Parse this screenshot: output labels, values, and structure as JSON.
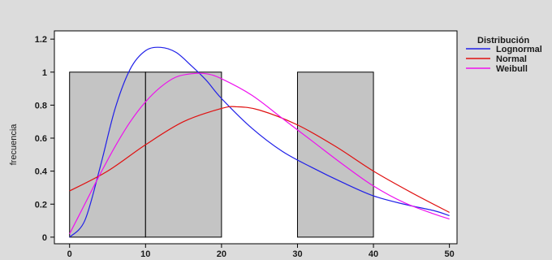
{
  "chart_data": {
    "type": "histogram-with-fitted-curves",
    "ylabel": "frecuencia",
    "xlabel": "",
    "xlim": [
      -2,
      51
    ],
    "ylim": [
      -0.04,
      1.25
    ],
    "x_ticks": [
      0,
      10,
      20,
      30,
      40,
      50
    ],
    "y_ticks": [
      0,
      0.2,
      0.4,
      0.6,
      0.8,
      1,
      1.2
    ],
    "grid": false,
    "legend": {
      "title": "Distribución",
      "placement": "right",
      "entries": [
        {
          "name": "Lognormal",
          "color": "#2020e8"
        },
        {
          "name": "Normal",
          "color": "#e01010"
        },
        {
          "name": "Weibull",
          "color": "#ee10ee"
        }
      ]
    },
    "bars": [
      {
        "x0": 0,
        "x1": 10,
        "value": 1
      },
      {
        "x0": 10,
        "x1": 20,
        "value": 1
      },
      {
        "x0": 20,
        "x1": 30,
        "value": 0
      },
      {
        "x0": 30,
        "x1": 40,
        "value": 1
      },
      {
        "x0": 40,
        "x1": 50,
        "value": 0
      }
    ],
    "bar_color": "#c4c4c4",
    "series": [
      {
        "name": "Lognormal",
        "color": "#2020e8",
        "x": [
          0,
          2,
          4,
          6,
          8,
          10,
          12,
          14,
          16,
          18,
          20,
          24,
          28,
          32,
          36,
          40,
          44,
          48,
          50
        ],
        "y": [
          0,
          0.1,
          0.42,
          0.78,
          1.02,
          1.13,
          1.15,
          1.12,
          1.04,
          0.95,
          0.84,
          0.66,
          0.52,
          0.42,
          0.33,
          0.25,
          0.2,
          0.16,
          0.13
        ]
      },
      {
        "name": "Normal",
        "color": "#e01010",
        "x": [
          0,
          5,
          10,
          15,
          20,
          22,
          25,
          30,
          35,
          40,
          45,
          50
        ],
        "y": [
          0.28,
          0.4,
          0.56,
          0.7,
          0.78,
          0.79,
          0.77,
          0.68,
          0.55,
          0.4,
          0.27,
          0.15
        ]
      },
      {
        "name": "Weibull",
        "color": "#ee10ee",
        "x": [
          0,
          2,
          4,
          6,
          8,
          10,
          12,
          14,
          16,
          18,
          20,
          24,
          28,
          32,
          36,
          40,
          44,
          48,
          50
        ],
        "y": [
          0.02,
          0.2,
          0.38,
          0.55,
          0.7,
          0.82,
          0.91,
          0.97,
          0.99,
          0.99,
          0.96,
          0.86,
          0.72,
          0.58,
          0.44,
          0.31,
          0.21,
          0.14,
          0.11
        ]
      }
    ]
  }
}
